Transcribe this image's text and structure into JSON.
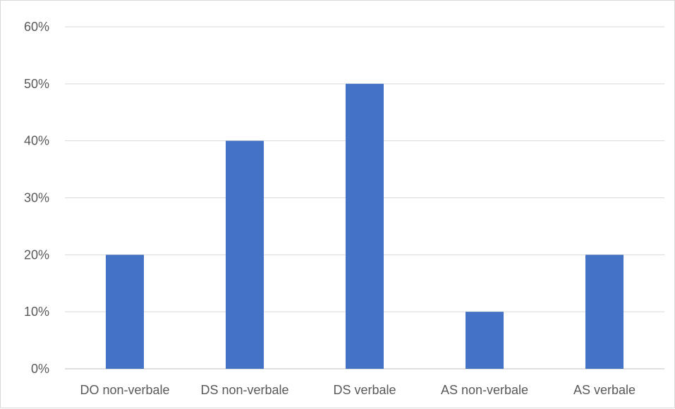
{
  "chart_data": {
    "type": "bar",
    "categories": [
      "DO non-verbale",
      "DS non-verbale",
      "DS verbale",
      "AS non-verbale",
      "AS verbale"
    ],
    "values": [
      20,
      40,
      50,
      10,
      20
    ],
    "value_format": "percent",
    "ylim": [
      0,
      60
    ],
    "yticks": [
      "0%",
      "10%",
      "20%",
      "30%",
      "40%",
      "50%",
      "60%"
    ],
    "title": "",
    "xlabel": "",
    "ylabel": "",
    "grid": true,
    "legend": "none",
    "colors": {
      "bar": "#4472C4",
      "grid": "#D9D9D9",
      "axis": "#BFBFBF",
      "text": "#595959",
      "border": "#D9D9D9"
    }
  }
}
